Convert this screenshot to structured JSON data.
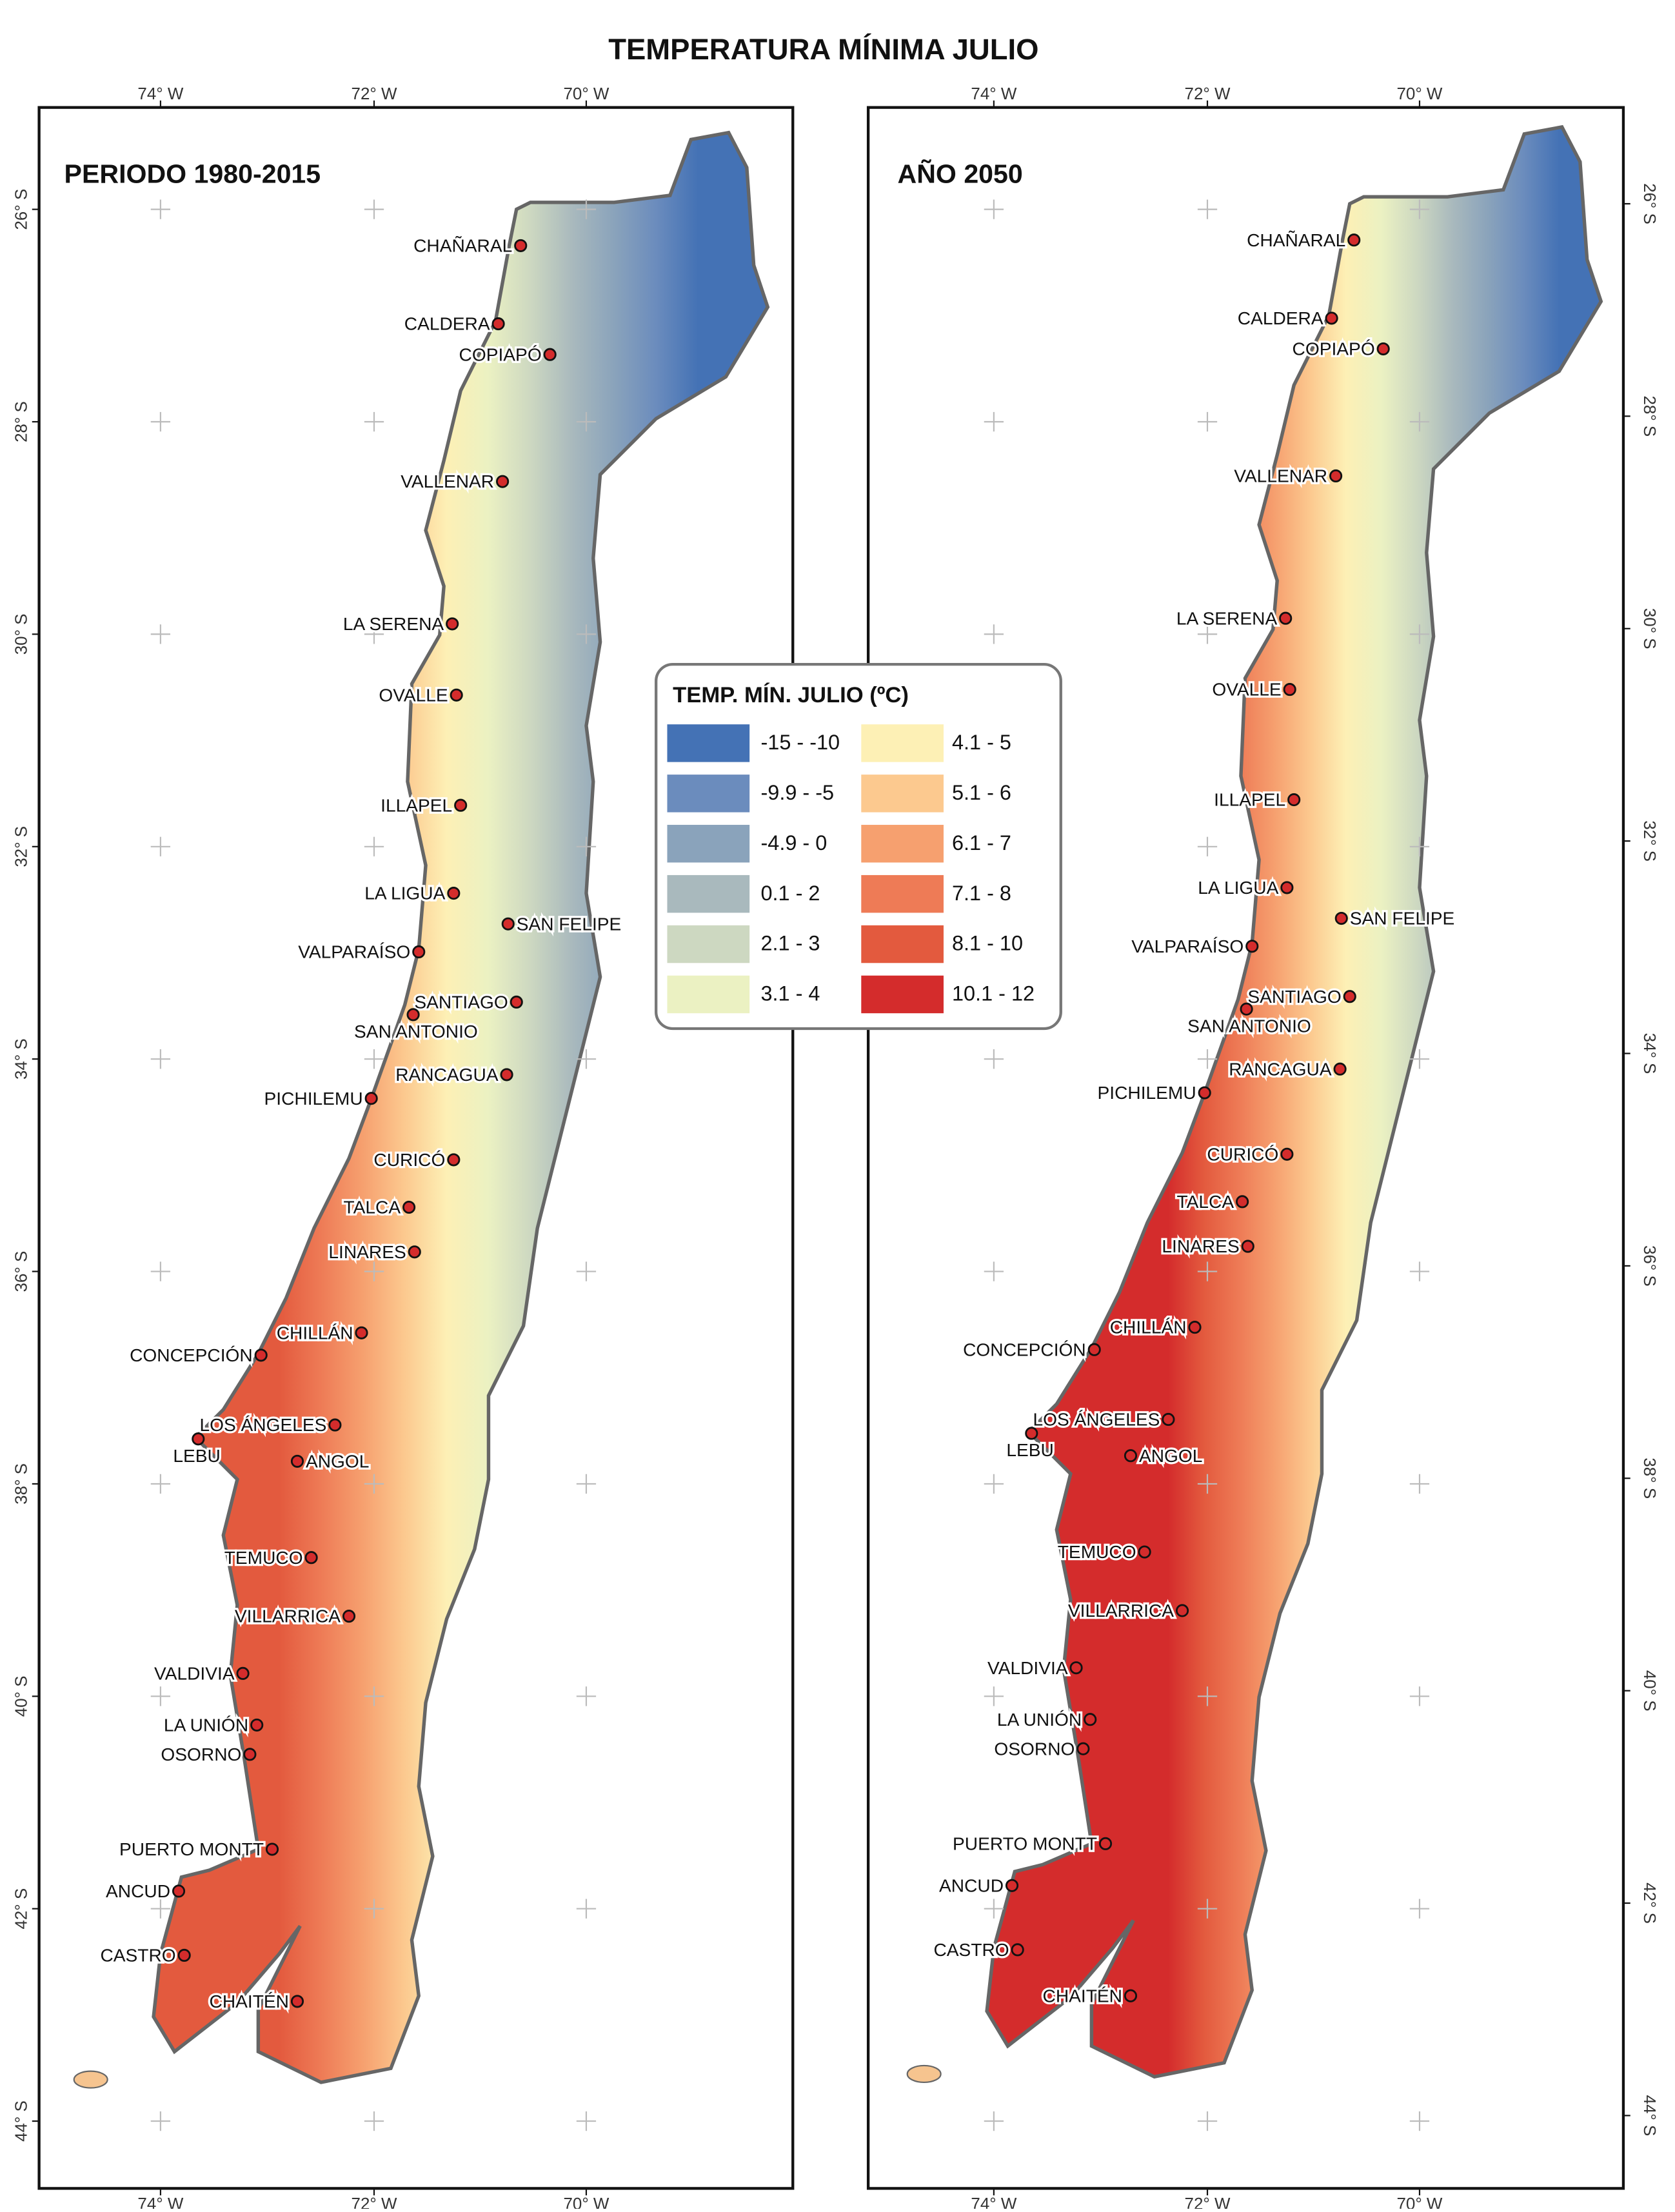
{
  "title": "TEMPERATURA MÍNIMA JULIO",
  "panels": [
    {
      "title": "PERIODO 1980-2015"
    },
    {
      "title": "AÑO 2050"
    }
  ],
  "lon_labels": [
    "74° W",
    "72° W",
    "70° W"
  ],
  "lat_labels": [
    "26° S",
    "28° S",
    "30° S",
    "32° S",
    "34° S",
    "36° S",
    "38° S",
    "40° S",
    "42° S",
    "44° S"
  ],
  "cities": [
    "CHAÑARAL",
    "CALDERA",
    "COPIAPÓ",
    "VALLENAR",
    "LA SERENA",
    "OVALLE",
    "ILLAPEL",
    "LA LIGUA",
    "SAN FELIPE",
    "VALPARAÍSO",
    "SANTIAGO",
    "SAN ANTONIO",
    "RANCAGUA",
    "PICHILEMU",
    "CURICÓ",
    "TALCA",
    "LINARES",
    "CHILLÁN",
    "CONCEPCIÓN",
    "LOS ÁNGELES",
    "LEBU",
    "ANGOL",
    "TEMUCO",
    "VILLARRICA",
    "VALDIVIA",
    "LA UNIÓN",
    "OSORNO",
    "PUERTO MONTT",
    "ANCUD",
    "CASTRO",
    "CHAITÉN"
  ],
  "legend": {
    "title": "TEMP. MÍN. JULIO (ºC)",
    "items": [
      {
        "label": "-15 - -10",
        "color": "#4472b5"
      },
      {
        "label": "-9.9 - -5",
        "color": "#6b8cbd"
      },
      {
        "label": "-4.9 - 0",
        "color": "#8aa3bb"
      },
      {
        "label": "0.1 - 2",
        "color": "#a9b9bd"
      },
      {
        "label": "2.1 - 3",
        "color": "#cdd8c1"
      },
      {
        "label": "3.1 - 4",
        "color": "#ebf1c2"
      },
      {
        "label": "4.1 - 5",
        "color": "#fdf0b5"
      },
      {
        "label": "5.1 - 6",
        "color": "#fcc98f"
      },
      {
        "label": "6.1 - 7",
        "color": "#f6a06f"
      },
      {
        "label": "7.1 - 8",
        "color": "#ee7b56"
      },
      {
        "label": "8.1 - 10",
        "color": "#e35a3e"
      },
      {
        "label": "10.1 - 12",
        "color": "#d42c2c"
      }
    ]
  }
}
